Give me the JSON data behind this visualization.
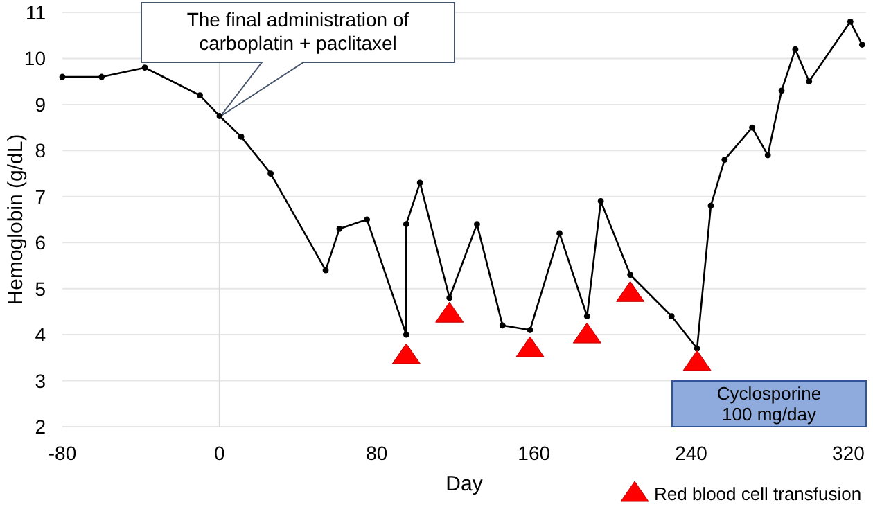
{
  "chart_data": {
    "type": "line",
    "xlabel": "Day",
    "ylabel": "Hemoglobin (g/dL)",
    "xlim": [
      -80,
      329
    ],
    "xticks": [
      -80,
      0,
      80,
      160,
      240,
      320
    ],
    "ylim": [
      2,
      11
    ],
    "yticks": [
      2,
      3,
      4,
      5,
      6,
      7,
      8,
      9,
      10,
      11
    ],
    "grid": "y",
    "legend": "bottom right",
    "ref_lines": [
      {
        "axis": "x",
        "value": 0,
        "color": "#d9d9d9"
      }
    ],
    "annotations": [
      "The final administration of\ncarboplatin + paclitaxel",
      "Cyclosporine\n100 mg/day"
    ],
    "series": [
      {
        "color": "#000000",
        "marker": "circle",
        "x": [
          -80,
          -60,
          -38,
          -10,
          0,
          11,
          26,
          54,
          61,
          75,
          95,
          95,
          102,
          117,
          131,
          144,
          158,
          173,
          187,
          194,
          209,
          230,
          243,
          250,
          257,
          271,
          279,
          286,
          293,
          300,
          321,
          327
        ],
        "values": [
          9.6,
          9.6,
          9.8,
          9.2,
          8.75,
          8.3,
          7.5,
          5.4,
          6.3,
          6.5,
          4.0,
          6.4,
          7.3,
          4.8,
          6.4,
          4.2,
          4.1,
          6.2,
          4.4,
          6.9,
          5.3,
          4.4,
          3.7,
          6.8,
          7.8,
          8.5,
          7.9,
          9.3,
          10.2,
          9.5,
          10.8,
          10.3
        ]
      },
      {
        "type": "scatter",
        "name": "Red blood cell transfusion",
        "color": "#ff0000",
        "marker": "triangle",
        "x": [
          95,
          117,
          158,
          187,
          209,
          243
        ],
        "values": [
          3.55,
          4.45,
          3.7,
          4.0,
          4.9,
          3.4
        ]
      }
    ]
  }
}
